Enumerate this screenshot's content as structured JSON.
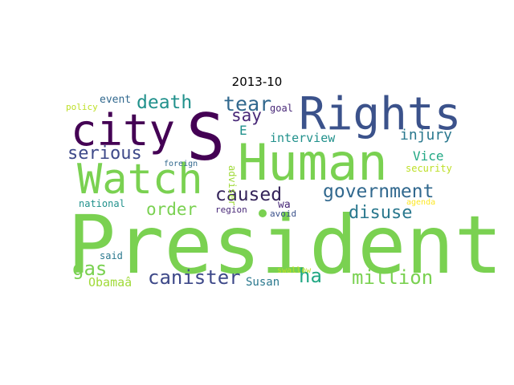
{
  "title": "2013-10",
  "words": [
    {
      "text": "President",
      "color": "#7ad151"
    },
    {
      "text": "S",
      "color": "#440154"
    },
    {
      "text": "Human",
      "color": "#7ad151"
    },
    {
      "text": "Rights",
      "color": "#3b528b"
    },
    {
      "text": "city",
      "color": "#440154"
    },
    {
      "text": "Watch",
      "color": "#7ad151"
    },
    {
      "text": "death",
      "color": "#21918c"
    },
    {
      "text": "tear",
      "color": "#31688e"
    },
    {
      "text": "say",
      "color": "#482878"
    },
    {
      "text": "serious",
      "color": "#3e4989"
    },
    {
      "text": "caused",
      "color": "#35245a"
    },
    {
      "text": "government",
      "color": "#31688e"
    },
    {
      "text": "order",
      "color": "#7ad151"
    },
    {
      "text": "disuse",
      "color": "#2a788e"
    },
    {
      "text": "injury",
      "color": "#2a788e"
    },
    {
      "text": "interview",
      "color": "#21918c"
    },
    {
      "text": "Vice",
      "color": "#22a884"
    },
    {
      "text": "security",
      "color": "#bddf26"
    },
    {
      "text": "E",
      "color": "#21918c"
    },
    {
      "text": "canister",
      "color": "#3e4989"
    },
    {
      "text": "ha",
      "color": "#22a884"
    },
    {
      "text": "million",
      "color": "#7ad151"
    },
    {
      "text": "gas",
      "color": "#7ad151"
    },
    {
      "text": "Obamaâ",
      "color": "#a0da39"
    },
    {
      "text": "Susan",
      "color": "#2a788e"
    },
    {
      "text": "event",
      "color": "#31688e"
    },
    {
      "text": "policy",
      "color": "#bddf26"
    },
    {
      "text": "goal",
      "color": "#482878"
    },
    {
      "text": "foreign",
      "color": "#31688e"
    },
    {
      "text": "adviser",
      "color": "#a0da39"
    },
    {
      "text": "wa",
      "color": "#482878"
    },
    {
      "text": "region",
      "color": "#482878"
    },
    {
      "text": "avoid",
      "color": "#3b528b"
    },
    {
      "text": "agenda",
      "color": "#fde725"
    },
    {
      "text": "national",
      "color": "#21918c"
    },
    {
      "text": "said",
      "color": "#2a788e"
    },
    {
      "text": "swallow",
      "color": "#bddf26"
    }
  ]
}
